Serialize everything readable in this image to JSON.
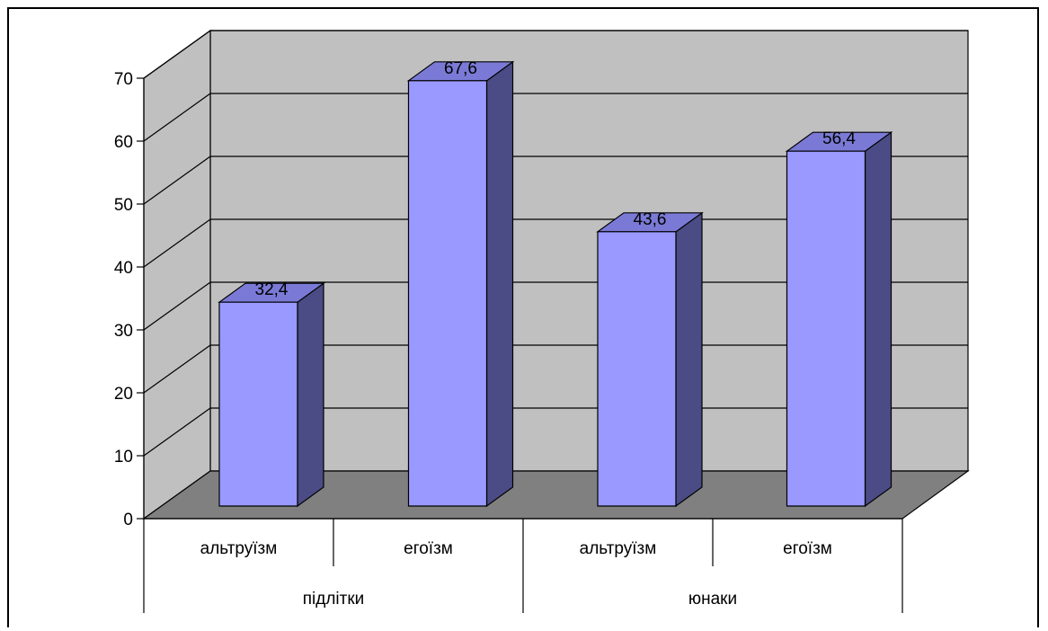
{
  "chart_data": {
    "type": "bar",
    "style": "3d-column",
    "groups": [
      {
        "label": "підлітки",
        "categories": [
          "альтруїзм",
          "егоїзм"
        ],
        "values": [
          32.4,
          67.6
        ]
      },
      {
        "label": "юнаки",
        "categories": [
          "альтруїзм",
          "егоїзм"
        ],
        "values": [
          43.6,
          56.4
        ]
      }
    ],
    "data_labels": [
      "32,4",
      "67,6",
      "43,6",
      "56,4"
    ],
    "y_ticks": [
      "0",
      "10",
      "20",
      "30",
      "40",
      "50",
      "60",
      "70"
    ],
    "ylim": [
      0,
      70
    ],
    "grid": true,
    "legend": "none",
    "colors": {
      "bar_front": "#9999ff",
      "bar_side": "#4b4b85",
      "bar_top": "#7a7ad6",
      "wall": "#c0c0c0",
      "floor": "#808080"
    }
  }
}
